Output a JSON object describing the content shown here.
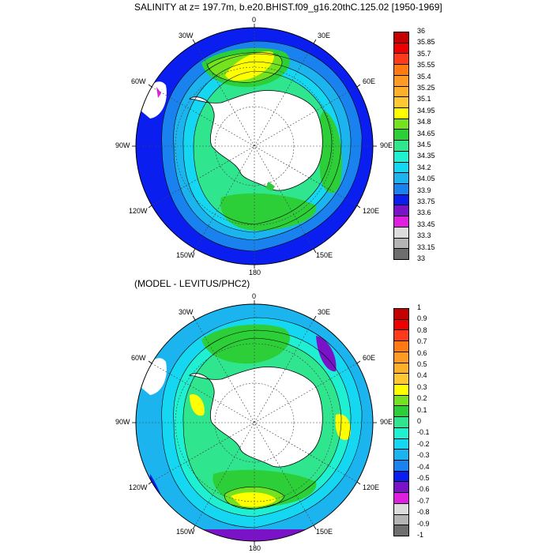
{
  "panels": [
    {
      "title": "SALINITY at z= 197.7m, b.e20.BHIST.f09_g16.20thC.125.02 [1950-1969]",
      "lon_labels": [
        "0",
        "30E",
        "60E",
        "90E",
        "120E",
        "150E",
        "180",
        "150W",
        "120W",
        "90W",
        "60W",
        "30W"
      ],
      "colorbar": {
        "labels": [
          "36",
          "35.85",
          "35.7",
          "35.55",
          "35.4",
          "35.25",
          "35.1",
          "34.95",
          "34.8",
          "34.65",
          "34.5",
          "34.35",
          "34.2",
          "34.05",
          "33.9",
          "33.75",
          "33.6",
          "33.45",
          "33.3",
          "33.15",
          "33"
        ],
        "colors": [
          "#c40000",
          "#ee0000",
          "#ff3a1a",
          "#ff7a10",
          "#ff9b22",
          "#ffb02a",
          "#ffc832",
          "#ffff00",
          "#74e21e",
          "#2ccf37",
          "#2fe68f",
          "#1ff0d2",
          "#16d7f2",
          "#1bb4ef",
          "#1a82ee",
          "#0a1ef0",
          "#7a12c8",
          "#e01ee0",
          "#dcdcdc",
          "#b4b4b4",
          "#6e6e6e"
        ]
      }
    },
    {
      "title": "(MODEL - LEVITUS/PHC2)",
      "lon_labels": [
        "0",
        "30E",
        "60E",
        "90E",
        "120E",
        "150E",
        "180",
        "150W",
        "120W",
        "90W",
        "60W",
        "30W"
      ],
      "colorbar": {
        "labels": [
          "1",
          "0.9",
          "0.8",
          "0.7",
          "0.6",
          "0.5",
          "0.4",
          "0.3",
          "0.2",
          "0.1",
          "0",
          "-0.1",
          "-0.2",
          "-0.3",
          "-0.4",
          "-0.5",
          "-0.6",
          "-0.7",
          "-0.8",
          "-0.9",
          "-1"
        ],
        "colors": [
          "#c40000",
          "#ee0000",
          "#ff3a1a",
          "#ff7a10",
          "#ff9b22",
          "#ffb02a",
          "#ffc832",
          "#ffff00",
          "#74e21e",
          "#2ccf37",
          "#2fe68f",
          "#1ff0d2",
          "#16d7f2",
          "#1bb4ef",
          "#1a82ee",
          "#0a1ef0",
          "#7a12c8",
          "#e01ee0",
          "#dcdcdc",
          "#b4b4b4",
          "#6e6e6e"
        ]
      }
    }
  ]
}
